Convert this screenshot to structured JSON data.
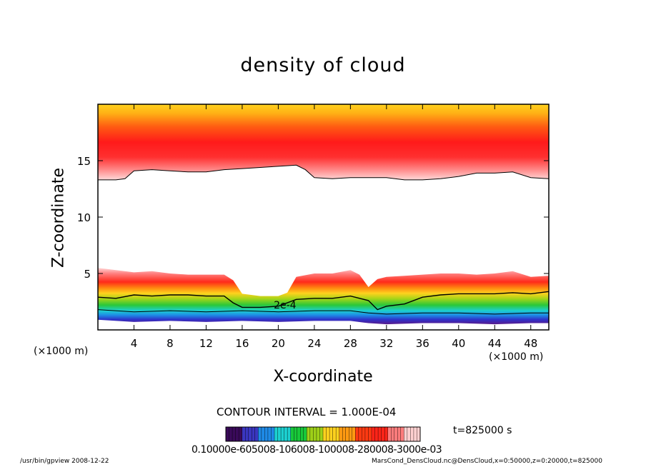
{
  "chart_data": {
    "type": "heatmap",
    "title": "density of cloud",
    "xlabel": "X-coordinate",
    "ylabel": "Z-coordinate",
    "x_unit_left": "(×1000 m)",
    "x_unit_right": "(×1000 m)",
    "xlim": [
      0,
      50
    ],
    "ylim": [
      0,
      20
    ],
    "x_ticks": [
      4,
      8,
      12,
      16,
      20,
      24,
      28,
      32,
      36,
      40,
      44,
      48
    ],
    "x_tick_labels": [
      "4",
      "8",
      "12",
      "16",
      "20",
      "24",
      "28",
      "32",
      "36",
      "40",
      "44",
      "48"
    ],
    "y_ticks": [
      5,
      10,
      15
    ],
    "y_tick_labels": [
      "5",
      "10",
      "15"
    ],
    "contour_interval_text": "CONTOUR INTERVAL = 1.000E-04",
    "contour_label": "2e-4",
    "time_label": "t=825000 s",
    "colorbar_labels_text": "0.10000e-605008-106008-100008-280008-3000e-03",
    "upper_cloud_base_km": [
      [
        0,
        13.3
      ],
      [
        2,
        13.3
      ],
      [
        3,
        13.4
      ],
      [
        4,
        14.1
      ],
      [
        6,
        14.2
      ],
      [
        8,
        14.1
      ],
      [
        10,
        14.0
      ],
      [
        12,
        14.0
      ],
      [
        14,
        14.2
      ],
      [
        16,
        14.3
      ],
      [
        18,
        14.4
      ],
      [
        20,
        14.5
      ],
      [
        22,
        14.6
      ],
      [
        23,
        14.2
      ],
      [
        24,
        13.5
      ],
      [
        26,
        13.4
      ],
      [
        28,
        13.5
      ],
      [
        30,
        13.5
      ],
      [
        32,
        13.5
      ],
      [
        34,
        13.3
      ],
      [
        36,
        13.3
      ],
      [
        38,
        13.4
      ],
      [
        40,
        13.6
      ],
      [
        42,
        13.9
      ],
      [
        44,
        13.9
      ],
      [
        46,
        14.0
      ],
      [
        48,
        13.5
      ],
      [
        50,
        13.4
      ]
    ],
    "lower_cloud_top_km": [
      [
        0,
        5.5
      ],
      [
        2,
        5.3
      ],
      [
        4,
        5.1
      ],
      [
        6,
        5.2
      ],
      [
        8,
        5.0
      ],
      [
        10,
        4.9
      ],
      [
        12,
        4.9
      ],
      [
        14,
        4.9
      ],
      [
        15,
        4.4
      ],
      [
        16,
        3.2
      ],
      [
        18,
        3.0
      ],
      [
        20,
        3.0
      ],
      [
        21,
        3.3
      ],
      [
        22,
        4.7
      ],
      [
        24,
        5.0
      ],
      [
        26,
        5.0
      ],
      [
        28,
        5.3
      ],
      [
        29,
        4.9
      ],
      [
        30,
        3.8
      ],
      [
        31,
        4.5
      ],
      [
        32,
        4.7
      ],
      [
        34,
        4.8
      ],
      [
        36,
        4.9
      ],
      [
        38,
        5.0
      ],
      [
        40,
        5.0
      ],
      [
        42,
        4.9
      ],
      [
        44,
        5.0
      ],
      [
        46,
        5.2
      ],
      [
        48,
        4.7
      ],
      [
        50,
        4.8
      ]
    ],
    "contour_2e4_km": [
      [
        0,
        2.9
      ],
      [
        2,
        2.8
      ],
      [
        4,
        3.1
      ],
      [
        6,
        3.0
      ],
      [
        8,
        3.1
      ],
      [
        10,
        3.1
      ],
      [
        12,
        3.0
      ],
      [
        14,
        3.0
      ],
      [
        15,
        2.4
      ],
      [
        16,
        2.0
      ],
      [
        18,
        2.0
      ],
      [
        20,
        2.1
      ],
      [
        22,
        2.7
      ],
      [
        24,
        2.8
      ],
      [
        26,
        2.8
      ],
      [
        28,
        3.0
      ],
      [
        30,
        2.6
      ],
      [
        31,
        1.8
      ],
      [
        32,
        2.1
      ],
      [
        34,
        2.3
      ],
      [
        36,
        2.9
      ],
      [
        38,
        3.1
      ],
      [
        40,
        3.2
      ],
      [
        42,
        3.2
      ],
      [
        44,
        3.2
      ],
      [
        46,
        3.3
      ],
      [
        48,
        3.2
      ],
      [
        50,
        3.4
      ]
    ],
    "lower_cloud_base_km": [
      [
        0,
        0.9
      ],
      [
        4,
        0.7
      ],
      [
        8,
        0.8
      ],
      [
        12,
        0.7
      ],
      [
        16,
        0.8
      ],
      [
        20,
        0.7
      ],
      [
        24,
        0.8
      ],
      [
        28,
        0.8
      ],
      [
        30,
        0.6
      ],
      [
        32,
        0.5
      ],
      [
        36,
        0.6
      ],
      [
        40,
        0.6
      ],
      [
        44,
        0.5
      ],
      [
        48,
        0.6
      ],
      [
        50,
        0.6
      ]
    ],
    "colormap": [
      "#3a0a5a",
      "#3a36c0",
      "#1e8ae6",
      "#1cd0d0",
      "#18c83a",
      "#9ed018",
      "#ffd21e",
      "#ff9a12",
      "#ff3a12",
      "#ff2418",
      "#ff7c7c",
      "#ffd0d0"
    ]
  },
  "footer": {
    "left": "/usr/bin/gpview   2008-12-22",
    "right": "MarsCond_DensCloud.nc@DensCloud,x=0:50000,z=0:20000,t=825000"
  }
}
